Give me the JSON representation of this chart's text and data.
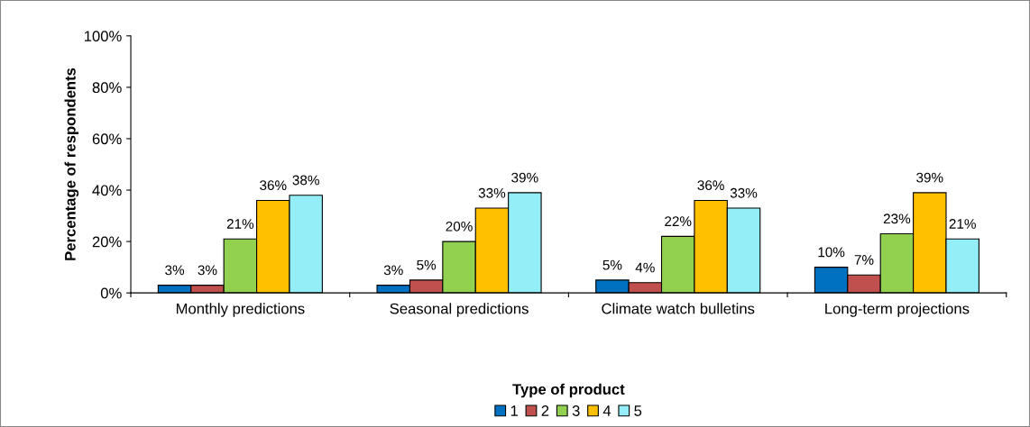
{
  "chart_data": {
    "type": "bar",
    "ylabel": "Percentage of respondents",
    "legend_title": "Type of product",
    "categories": [
      "Monthly predictions",
      "Seasonal predictions",
      "Climate watch bulletins",
      "Long-term projections"
    ],
    "series": [
      {
        "name": "1",
        "color": "#0070c0",
        "values": [
          3,
          3,
          5,
          10
        ],
        "value_labels": [
          "3%",
          "3%",
          "5%",
          "10%"
        ]
      },
      {
        "name": "2",
        "color": "#c0504d",
        "values": [
          3,
          5,
          4,
          7
        ],
        "value_labels": [
          "3%",
          "5%",
          "4%",
          "7%"
        ]
      },
      {
        "name": "3",
        "color": "#92d050",
        "values": [
          21,
          20,
          22,
          23
        ],
        "value_labels": [
          "21%",
          "20%",
          "22%",
          "23%"
        ]
      },
      {
        "name": "4",
        "color": "#ffc000",
        "values": [
          36,
          33,
          36,
          39
        ],
        "value_labels": [
          "36%",
          "33%",
          "36%",
          "39%"
        ]
      },
      {
        "name": "5",
        "color": "#93eef8",
        "values": [
          38,
          39,
          33,
          21
        ],
        "value_labels": [
          "38%",
          "39%",
          "33%",
          "21%"
        ]
      }
    ],
    "ylim": [
      0,
      100
    ],
    "yticks": [
      {
        "value": 0,
        "label": "0%"
      },
      {
        "value": 20,
        "label": "20%"
      },
      {
        "value": 40,
        "label": "40%"
      },
      {
        "value": 60,
        "label": "60%"
      },
      {
        "value": 80,
        "label": "80%"
      },
      {
        "value": 100,
        "label": "100%"
      }
    ],
    "grid": false,
    "legend": "bottom"
  }
}
